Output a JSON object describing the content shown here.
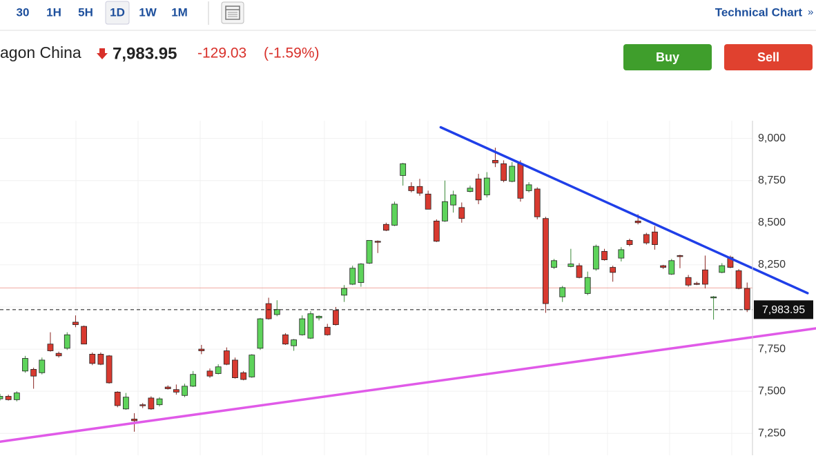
{
  "header": {
    "tabs": [
      "30",
      "1H",
      "5H",
      "1D",
      "1W",
      "1M"
    ],
    "active_tab_index": 3,
    "link": "Technical Chart",
    "link_arrow": "»",
    "instrument": "agon China",
    "price": "7,983.95",
    "change": "-129.03",
    "change_pct": "(-1.59%)",
    "buy": "Buy",
    "sell": "Sell"
  },
  "chart_data": {
    "type": "candlestick",
    "ylim": [
      7120,
      9105
    ],
    "yticks": [
      {
        "value": 7250,
        "label": "7,250"
      },
      {
        "value": 7500,
        "label": "7,500"
      },
      {
        "value": 7750,
        "label": "7,750"
      },
      {
        "value": 8000,
        "label": "8,000"
      },
      {
        "value": 8250,
        "label": "8,250"
      },
      {
        "value": 8500,
        "label": "8,500"
      },
      {
        "value": 8750,
        "label": "8,750"
      },
      {
        "value": 9000,
        "label": "9,000"
      }
    ],
    "grid": true,
    "up_color": "#5ed35b",
    "down_color": "#d83a30",
    "open": [
      7455,
      7470,
      7450,
      7620,
      7630,
      7610,
      7780,
      7725,
      7755,
      7910,
      7885,
      7720,
      7720,
      7710,
      7495,
      7395,
      7335,
      7420,
      7460,
      7420,
      7525,
      7510,
      7475,
      7530,
      7750,
      7620,
      7605,
      7740,
      7685,
      7610,
      7585,
      7755,
      8020,
      7955,
      7835,
      7770,
      7835,
      7815,
      7935,
      7880,
      7980,
      8070,
      8135,
      8145,
      8260,
      8390,
      8490,
      8485,
      8780,
      8715,
      8715,
      8670,
      8510,
      8510,
      8605,
      8590,
      8685,
      8760,
      8665,
      8870,
      8850,
      8745,
      8850,
      8690,
      8700,
      8525,
      8235,
      8060,
      8240,
      8245,
      8080,
      8225,
      8330,
      8235,
      8290,
      8395,
      8510,
      8430,
      8445,
      8245,
      8195,
      8305,
      8175,
      8140,
      8220,
      8055,
      8205,
      8295,
      8215,
      8110
    ],
    "high": [
      7485,
      7480,
      7500,
      7710,
      7640,
      7700,
      7850,
      7735,
      7850,
      7950,
      7890,
      7730,
      7730,
      7715,
      7500,
      7490,
      7370,
      7430,
      7470,
      7465,
      7535,
      7540,
      7545,
      7620,
      7775,
      7635,
      7660,
      7760,
      7700,
      7620,
      7720,
      7935,
      8055,
      8040,
      7845,
      7810,
      7950,
      7975,
      7950,
      7900,
      8000,
      8130,
      8245,
      8260,
      8395,
      8395,
      8500,
      8625,
      8855,
      8740,
      8760,
      8690,
      8520,
      8750,
      8690,
      8620,
      8720,
      8790,
      8800,
      8945,
      8870,
      8860,
      8870,
      8740,
      8710,
      8535,
      8285,
      8125,
      8345,
      8260,
      8210,
      8370,
      8345,
      8245,
      8355,
      8405,
      8550,
      8440,
      8480,
      8250,
      8285,
      8310,
      8190,
      8150,
      8305,
      8065,
      8260,
      8305,
      8225,
      8145
    ],
    "low": [
      7445,
      7445,
      7440,
      7610,
      7515,
      7600,
      7735,
      7700,
      7745,
      7880,
      7780,
      7655,
      7655,
      7545,
      7405,
      7390,
      7260,
      7400,
      7390,
      7410,
      7510,
      7480,
      7465,
      7525,
      7720,
      7580,
      7600,
      7655,
      7575,
      7565,
      7580,
      7745,
      7925,
      7945,
      7775,
      7740,
      7830,
      7810,
      7920,
      7830,
      7890,
      8030,
      8130,
      8120,
      8255,
      8320,
      8450,
      8480,
      8720,
      8680,
      8660,
      8580,
      8385,
      8505,
      8560,
      8500,
      8680,
      8610,
      8650,
      8830,
      8740,
      8740,
      8625,
      8680,
      8520,
      7965,
      8225,
      8030,
      8235,
      8170,
      8070,
      8215,
      8275,
      8150,
      8270,
      8360,
      8490,
      8370,
      8340,
      8225,
      8190,
      8230,
      8120,
      8130,
      8110,
      7925,
      8200,
      8230,
      8105,
      7970
    ],
    "close": [
      7470,
      7450,
      7490,
      7695,
      7590,
      7685,
      7740,
      7710,
      7835,
      7895,
      7780,
      7665,
      7660,
      7550,
      7415,
      7465,
      7325,
      7415,
      7395,
      7455,
      7515,
      7495,
      7530,
      7600,
      7740,
      7590,
      7645,
      7660,
      7580,
      7570,
      7715,
      7930,
      7930,
      7985,
      7780,
      7805,
      7930,
      7960,
      7945,
      7835,
      7895,
      8110,
      8230,
      8255,
      8395,
      8385,
      8455,
      8610,
      8850,
      8690,
      8675,
      8580,
      8390,
      8625,
      8665,
      8525,
      8705,
      8635,
      8765,
      8855,
      8750,
      8835,
      8645,
      8725,
      8535,
      8020,
      8275,
      8115,
      8255,
      8175,
      8175,
      8360,
      8280,
      8205,
      8340,
      8370,
      8500,
      8380,
      8370,
      8235,
      8275,
      8300,
      8130,
      8135,
      8135,
      8060,
      8245,
      8235,
      8110,
      7983.95
    ],
    "prev_close": 8112.98,
    "prev_close_color": "#f0a8a0",
    "last_price": 7983.95,
    "last_price_label": "7,983.95",
    "trendlines": [
      {
        "color": "#1f3fe8",
        "from": [
          52.5,
          9066
        ],
        "to": [
          96.2,
          8082
        ]
      },
      {
        "color": "#e05ae8",
        "from": [
          0,
          7201
        ],
        "to": [
          97.2,
          7873
        ]
      }
    ]
  }
}
